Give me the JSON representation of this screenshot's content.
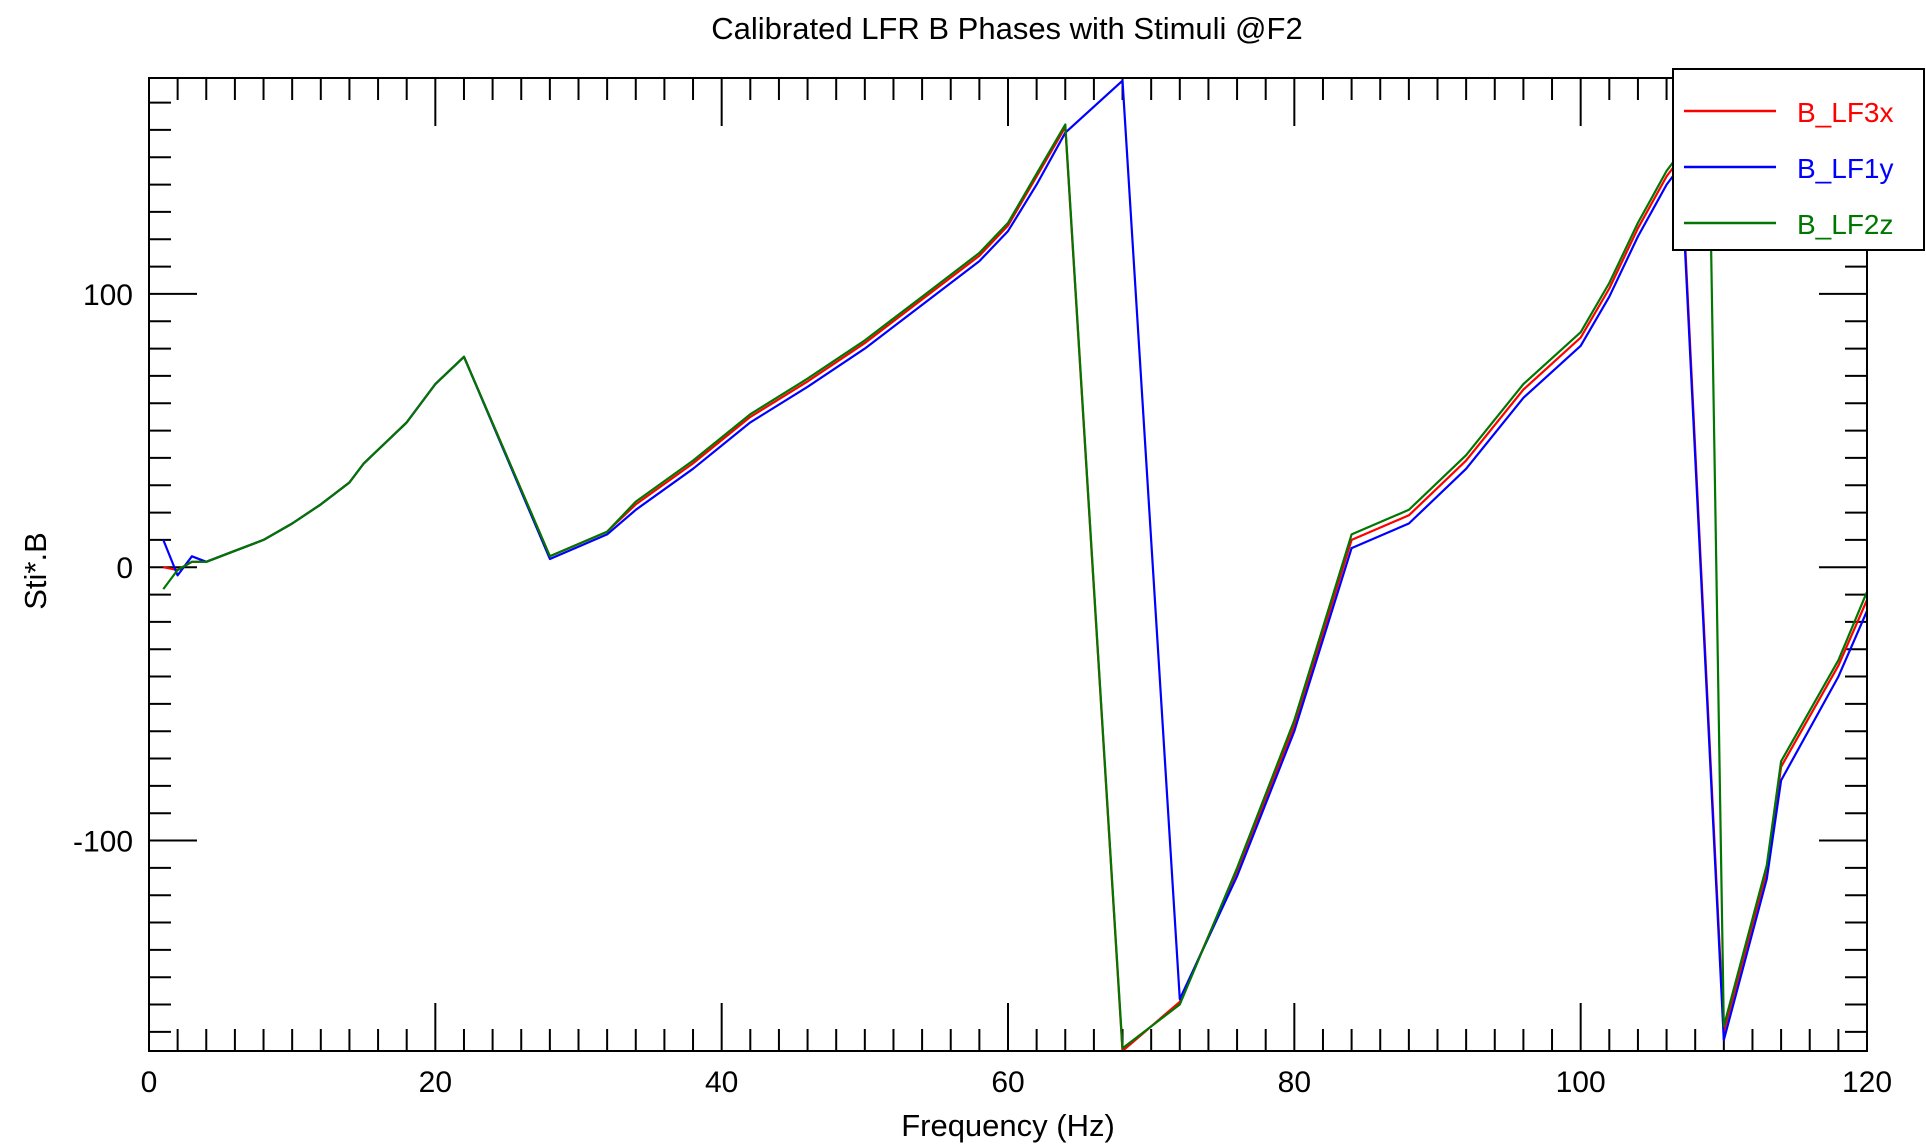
{
  "chart_data": {
    "type": "line",
    "title": "Calibrated LFR B Phases with Stimuli  @F2",
    "xlabel": "Frequency (Hz)",
    "ylabel": "Sti*.B",
    "xlim": [
      0,
      120
    ],
    "ylim": [
      -177,
      179
    ],
    "x_ticks": [
      0,
      20,
      40,
      60,
      80,
      100,
      120
    ],
    "x_tick_labels": [
      "0",
      "20",
      "40",
      "60",
      "80",
      "100",
      "120"
    ],
    "y_ticks": [
      100,
      0,
      -100
    ],
    "y_tick_labels": [
      "100",
      "0",
      "-100"
    ],
    "grid": false,
    "legend_position": "top-right",
    "series": [
      {
        "name": "B_LF3x",
        "color": "#ff0000",
        "points": [
          [
            1,
            0
          ],
          [
            2,
            -1
          ],
          [
            3,
            2
          ],
          [
            4,
            2
          ],
          [
            6,
            6
          ],
          [
            8,
            10
          ],
          [
            10,
            16
          ],
          [
            12,
            23
          ],
          [
            14,
            31
          ],
          [
            15,
            38
          ],
          [
            18,
            53
          ],
          [
            20,
            67
          ],
          [
            22,
            77
          ],
          [
            28,
            4
          ],
          [
            32,
            13
          ],
          [
            34,
            23
          ],
          [
            38,
            38
          ],
          [
            42,
            55
          ],
          [
            46,
            68
          ],
          [
            50,
            82
          ],
          [
            54,
            98
          ],
          [
            58,
            114
          ],
          [
            60,
            125
          ],
          [
            62,
            143
          ],
          [
            64,
            161
          ],
          [
            68,
            -177
          ],
          [
            72,
            -159
          ],
          [
            76,
            -111
          ],
          [
            80,
            -58
          ],
          [
            84,
            10
          ],
          [
            88,
            19
          ],
          [
            92,
            39
          ],
          [
            96,
            65
          ],
          [
            100,
            84
          ],
          [
            102,
            102
          ],
          [
            104,
            124
          ],
          [
            106,
            143
          ],
          [
            107,
            150
          ],
          [
            110,
            -170
          ],
          [
            113,
            -111
          ],
          [
            114,
            -73
          ],
          [
            118,
            -36
          ],
          [
            120,
            -12
          ]
        ]
      },
      {
        "name": "B_LF1y",
        "color": "#0000ff",
        "points": [
          [
            1,
            10
          ],
          [
            2,
            -3
          ],
          [
            3,
            4
          ],
          [
            4,
            2
          ],
          [
            6,
            6
          ],
          [
            8,
            10
          ],
          [
            10,
            16
          ],
          [
            12,
            23
          ],
          [
            14,
            31
          ],
          [
            15,
            38
          ],
          [
            18,
            53
          ],
          [
            20,
            67
          ],
          [
            22,
            77
          ],
          [
            28,
            3
          ],
          [
            32,
            12
          ],
          [
            34,
            21
          ],
          [
            38,
            36
          ],
          [
            42,
            53
          ],
          [
            46,
            66
          ],
          [
            50,
            80
          ],
          [
            54,
            96
          ],
          [
            58,
            112
          ],
          [
            60,
            123
          ],
          [
            62,
            140
          ],
          [
            64,
            159
          ],
          [
            68,
            178
          ],
          [
            72,
            -158
          ],
          [
            76,
            -113
          ],
          [
            80,
            -60
          ],
          [
            84,
            7
          ],
          [
            88,
            16
          ],
          [
            92,
            36
          ],
          [
            96,
            62
          ],
          [
            100,
            81
          ],
          [
            102,
            99
          ],
          [
            104,
            121
          ],
          [
            106,
            140
          ],
          [
            107,
            147
          ],
          [
            110,
            -173
          ],
          [
            113,
            -114
          ],
          [
            114,
            -78
          ],
          [
            118,
            -40
          ],
          [
            120,
            -16
          ]
        ]
      },
      {
        "name": "B_LF2z",
        "color": "#007700",
        "points": [
          [
            1,
            -8
          ],
          [
            2,
            -1
          ],
          [
            3,
            2
          ],
          [
            4,
            2
          ],
          [
            6,
            6
          ],
          [
            8,
            10
          ],
          [
            10,
            16
          ],
          [
            12,
            23
          ],
          [
            14,
            31
          ],
          [
            15,
            38
          ],
          [
            18,
            53
          ],
          [
            20,
            67
          ],
          [
            22,
            77
          ],
          [
            28,
            4
          ],
          [
            32,
            13
          ],
          [
            34,
            24
          ],
          [
            38,
            39
          ],
          [
            42,
            56
          ],
          [
            46,
            69
          ],
          [
            50,
            83
          ],
          [
            54,
            99
          ],
          [
            58,
            115
          ],
          [
            60,
            126
          ],
          [
            62,
            144
          ],
          [
            64,
            162
          ],
          [
            68,
            -176
          ],
          [
            72,
            -160
          ],
          [
            76,
            -110
          ],
          [
            80,
            -56
          ],
          [
            84,
            12
          ],
          [
            88,
            21
          ],
          [
            92,
            41
          ],
          [
            96,
            67
          ],
          [
            100,
            86
          ],
          [
            102,
            104
          ],
          [
            104,
            126
          ],
          [
            106,
            145
          ],
          [
            107,
            152
          ],
          [
            108,
            152
          ],
          [
            109,
            153
          ],
          [
            110,
            -168
          ],
          [
            113,
            -109
          ],
          [
            114,
            -71
          ],
          [
            118,
            -34
          ],
          [
            120,
            -9
          ]
        ]
      }
    ]
  }
}
